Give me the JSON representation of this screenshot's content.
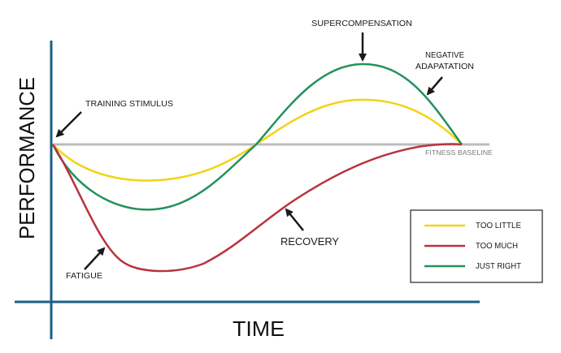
{
  "axes": {
    "x_label": "TIME",
    "y_label": "PERFORMANCE"
  },
  "annotations": {
    "training_stimulus": "TRAINING STIMULUS",
    "supercompensation": "SUPERCOMPENSATION",
    "negative_line1": "NEGATIVE",
    "negative_line2": "ADAPATATION",
    "fitness_baseline": "FITNESS BASELINE",
    "fatigue": "FATIGUE",
    "recovery": "RECOVERY"
  },
  "legend": {
    "items": [
      {
        "label": "TOO LITTLE",
        "color": "#f2d312"
      },
      {
        "label": "TOO MUCH",
        "color": "#b8333d"
      },
      {
        "label": "JUST RIGHT",
        "color": "#23915c"
      }
    ]
  },
  "colors": {
    "axis": "#1d5f87",
    "baseline": "#bcbcbc",
    "too_little": "#f2d312",
    "too_much": "#b8333d",
    "just_right": "#23915c",
    "text": "#1a1a1a"
  }
}
